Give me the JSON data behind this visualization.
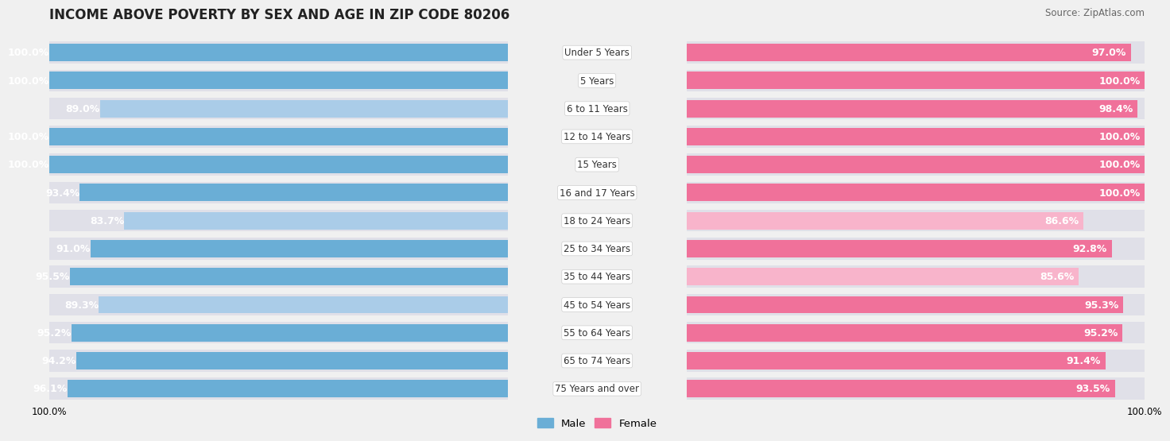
{
  "title": "INCOME ABOVE POVERTY BY SEX AND AGE IN ZIP CODE 80206",
  "source": "Source: ZipAtlas.com",
  "categories": [
    "Under 5 Years",
    "5 Years",
    "6 to 11 Years",
    "12 to 14 Years",
    "15 Years",
    "16 and 17 Years",
    "18 to 24 Years",
    "25 to 34 Years",
    "35 to 44 Years",
    "45 to 54 Years",
    "55 to 64 Years",
    "65 to 74 Years",
    "75 Years and over"
  ],
  "male": [
    100.0,
    100.0,
    89.0,
    100.0,
    100.0,
    93.4,
    83.7,
    91.0,
    95.5,
    89.3,
    95.2,
    94.2,
    96.1
  ],
  "female": [
    97.0,
    100.0,
    98.4,
    100.0,
    100.0,
    100.0,
    86.6,
    92.8,
    85.6,
    95.3,
    95.2,
    91.4,
    93.5
  ],
  "male_color": "#6aaed6",
  "female_color": "#f0719a",
  "male_color_light": "#aacce8",
  "female_color_light": "#f8b4cb",
  "male_label": "Male",
  "female_label": "Female",
  "background_color": "#f0f0f0",
  "bar_bg_color": "#e0e0e8",
  "label_font_size": 9,
  "title_font_size": 12,
  "source_font_size": 8.5,
  "xlim_left": 100,
  "xlim_right": 100
}
